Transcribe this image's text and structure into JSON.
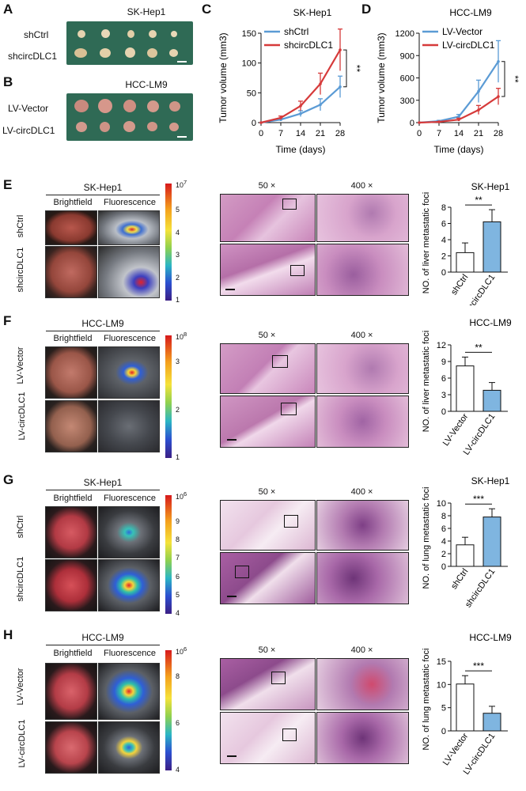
{
  "panels": {
    "A": {
      "letter": "A",
      "title": "SK-Hep1",
      "rows": [
        "shCtrl",
        "shcircDLC1"
      ]
    },
    "B": {
      "letter": "B",
      "title": "HCC-LM9",
      "rows": [
        "LV-Vector",
        "LV-circDLC1"
      ]
    },
    "C": {
      "letter": "C",
      "title": "SK-Hep1",
      "xlabel": "Time (days)",
      "ylabel": "Tumor volume (mm3)",
      "sig": "**",
      "legend": [
        "shCtrl",
        "shcircDLC1"
      ]
    },
    "D": {
      "letter": "D",
      "title": "HCC-LM9",
      "xlabel": "Time (days)",
      "ylabel": "Tumor volume (mm3)",
      "sig": "**",
      "legend": [
        "LV-Vector",
        "LV-circDLC1"
      ]
    },
    "E": {
      "letter": "E",
      "cell": "SK-Hep1",
      "col1": "Brightfield",
      "col2": "Fluorescence",
      "rows": [
        "shCtrl",
        "shcircDLC1"
      ],
      "cbar_top": "10",
      "cbar_exp": "7",
      "cbar_ticks": [
        "5",
        "4",
        "3",
        "2",
        "1"
      ],
      "mag1": "50 ×",
      "mag2": "400 ×"
    },
    "F": {
      "letter": "F",
      "cell": "HCC-LM9",
      "col1": "Brightfield",
      "col2": "Fluorescence",
      "rows": [
        "LV-Vector",
        "LV-circDLC1"
      ],
      "cbar_top": "10",
      "cbar_exp": "8",
      "cbar_ticks": [
        "3",
        "2",
        "1"
      ],
      "mag1": "50 ×",
      "mag2": "400 ×"
    },
    "G": {
      "letter": "G",
      "cell": "SK-Hep1",
      "col1": "Brightfield",
      "col2": "Fluorescence",
      "rows": [
        "shCtrl",
        "shcircDLC1"
      ],
      "cbar_top": "10",
      "cbar_exp": "6",
      "cbar_ticks": [
        "9",
        "8",
        "7",
        "6",
        "5",
        "4"
      ],
      "mag1": "50 ×",
      "mag2": "400 ×"
    },
    "H": {
      "letter": "H",
      "cell": "HCC-LM9",
      "col1": "Brightfield",
      "col2": "Fluorescence",
      "rows": [
        "LV-Vector",
        "LV-circDLC1"
      ],
      "cbar_top": "10",
      "cbar_exp": "6",
      "cbar_ticks": [
        "8",
        "6",
        "4"
      ],
      "mag1": "50 ×",
      "mag2": "400 ×"
    }
  },
  "colors": {
    "blue": "#5b9bd5",
    "red": "#d63a3a",
    "barblue": "#7fb5e0",
    "tray": "#2f6a55"
  },
  "chart_data": [
    {
      "id": "C",
      "type": "line",
      "title": "SK-Hep1",
      "xlabel": "Time (days)",
      "ylabel": "Tumor volume (mm3)",
      "x": [
        0,
        7,
        14,
        21,
        28
      ],
      "ylim": [
        0,
        150
      ],
      "xticks": [
        "0",
        "7",
        "14",
        "21",
        "28"
      ],
      "yticks": [
        "0",
        "50",
        "100",
        "150"
      ],
      "series": [
        {
          "name": "shCtrl",
          "color": "#5b9bd5",
          "values": [
            0,
            5,
            15,
            30,
            60
          ],
          "err": [
            0,
            2,
            5,
            10,
            18
          ]
        },
        {
          "name": "shcircDLC1",
          "color": "#d63a3a",
          "values": [
            0,
            8,
            28,
            65,
            122
          ],
          "err": [
            0,
            3,
            8,
            18,
            35
          ]
        }
      ],
      "annotation": "**"
    },
    {
      "id": "D",
      "type": "line",
      "title": "HCC-LM9",
      "xlabel": "Time (days)",
      "ylabel": "Tumor volume (mm3)",
      "x": [
        0,
        7,
        14,
        21,
        28
      ],
      "ylim": [
        0,
        1200
      ],
      "xticks": [
        "0",
        "7",
        "14",
        "21",
        "28"
      ],
      "yticks": [
        "0",
        "300",
        "600",
        "900",
        "1200"
      ],
      "series": [
        {
          "name": "LV-Vector",
          "color": "#5b9bd5",
          "values": [
            0,
            20,
            80,
            420,
            820
          ],
          "err": [
            0,
            10,
            30,
            150,
            280
          ]
        },
        {
          "name": "LV-circDLC1",
          "color": "#d63a3a",
          "values": [
            0,
            10,
            40,
            170,
            350
          ],
          "err": [
            0,
            5,
            20,
            60,
            110
          ]
        }
      ],
      "annotation": "**"
    },
    {
      "id": "E",
      "type": "bar",
      "title": "SK-Hep1",
      "ylabel": "NO. of liver metastatic foci",
      "categories": [
        "shCtrl",
        "shcircDLC1"
      ],
      "values": [
        2.4,
        6.2
      ],
      "err": [
        1.2,
        1.5
      ],
      "ylim": [
        0,
        8
      ],
      "yticks": [
        "0",
        "2",
        "4",
        "6",
        "8"
      ],
      "annotation": "**"
    },
    {
      "id": "F",
      "type": "bar",
      "title": "HCC-LM9",
      "ylabel": "NO. of liver metastatic foci",
      "categories": [
        "LV-Vector",
        "LV-circDLC1"
      ],
      "values": [
        8.2,
        3.8
      ],
      "err": [
        1.6,
        1.4
      ],
      "ylim": [
        0,
        12
      ],
      "yticks": [
        "0",
        "3",
        "6",
        "9",
        "12"
      ],
      "annotation": "**"
    },
    {
      "id": "G",
      "type": "bar",
      "title": "SK-Hep1",
      "ylabel": "NO. of lung metastatic foci",
      "categories": [
        "shCtrl",
        "shcircDLC1"
      ],
      "values": [
        3.4,
        7.8
      ],
      "err": [
        1.2,
        1.3
      ],
      "ylim": [
        0,
        10
      ],
      "yticks": [
        "0",
        "2",
        "4",
        "6",
        "8",
        "10"
      ],
      "annotation": "***"
    },
    {
      "id": "H",
      "type": "bar",
      "title": "HCC-LM9",
      "ylabel": "NO. of lung metastatic foci",
      "categories": [
        "LV-Vector",
        "LV-circDLC1"
      ],
      "values": [
        10.1,
        3.8
      ],
      "err": [
        1.8,
        1.5
      ],
      "ylim": [
        0,
        15
      ],
      "yticks": [
        "0",
        "5",
        "10",
        "15"
      ],
      "annotation": "***"
    }
  ]
}
